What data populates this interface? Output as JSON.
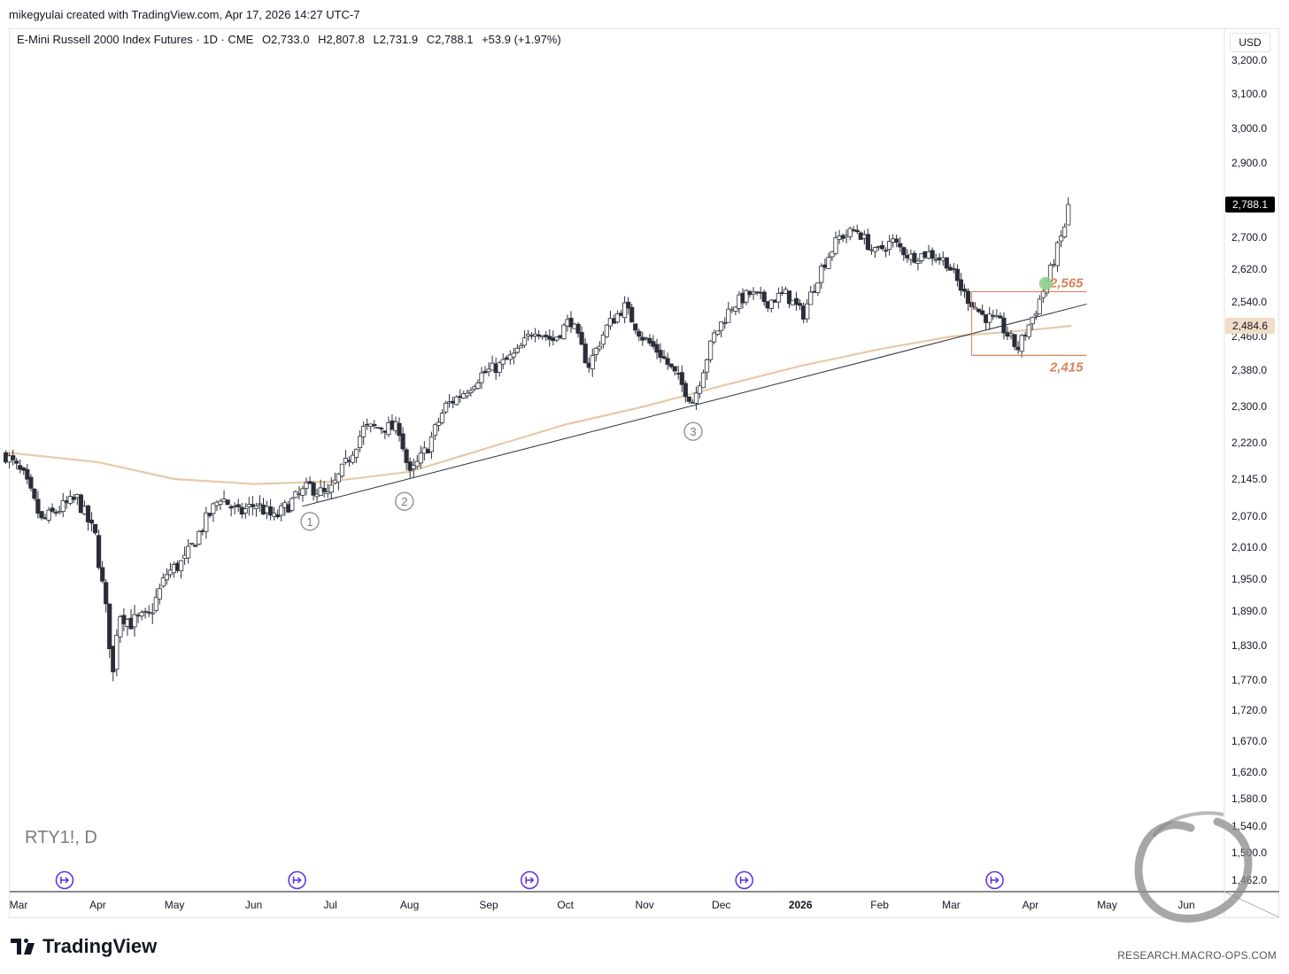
{
  "credit": "mikegyulai created with TradingView.com, Apr 17, 2026 14:27 UTC-7",
  "legend": {
    "title": "E-Mini Russell 2000 Index Futures · 1D · CME",
    "open": "O2,733.0",
    "high": "H2,807.8",
    "low": "L2,731.9",
    "close": "C2,788.1",
    "change": "+53.9 (+1.97%)"
  },
  "symbol_watermark": "RTY1!, D",
  "currency": "USD",
  "branding": {
    "logo_text": "TradingView",
    "site": "RESEARCH.MACRO-OPS.COM"
  },
  "colors": {
    "up": "#ffffff",
    "down": "#2a2e39",
    "ma": "#e8c9a8",
    "levels": "#d9825b",
    "signal": "#8fd18f",
    "event": "#5b2ee6"
  },
  "chart_data": {
    "type": "candlestick",
    "price_label": "2,788.1",
    "ma_label": "2,484.6",
    "y_axis_ticks": [
      "3,200.0",
      "3,100.0",
      "3,000.0",
      "2,900.0",
      "2,700.0",
      "2,620.0",
      "2,540.0",
      "2,460.0",
      "2,380.0",
      "2,300.0",
      "2,220.0",
      "2,145.0",
      "2,070.0",
      "2,010.0",
      "1,950.0",
      "1,890.0",
      "1,830.0",
      "1,770.0",
      "1,720.0",
      "1,670.0",
      "1,620.0",
      "1,580.0",
      "1,540.0",
      "1,500.0",
      "1,462.0"
    ],
    "x_axis_ticks": [
      "Mar",
      "Apr",
      "May",
      "Jun",
      "Jul",
      "Aug",
      "Sep",
      "Oct",
      "Nov",
      "Dec",
      "2026",
      "Feb",
      "Mar",
      "Apr",
      "May",
      "Jun"
    ],
    "annotations": {
      "levels": [
        "2,565",
        "2,415"
      ],
      "touch_labels": [
        "1",
        "2",
        "3"
      ]
    },
    "ohlc_anchors": [
      [
        "2025-02-24",
        2195
      ],
      [
        "2025-03-03",
        2150
      ],
      [
        "2025-03-10",
        2060
      ],
      [
        "2025-03-17",
        2085
      ],
      [
        "2025-03-24",
        2105
      ],
      [
        "2025-03-31",
        2030
      ],
      [
        "2025-04-04",
        1900
      ],
      [
        "2025-04-07",
        1780
      ],
      [
        "2025-04-09",
        1890
      ],
      [
        "2025-04-14",
        1870
      ],
      [
        "2025-04-21",
        1880
      ],
      [
        "2025-04-28",
        1960
      ],
      [
        "2025-05-05",
        1985
      ],
      [
        "2025-05-12",
        2050
      ],
      [
        "2025-05-19",
        2110
      ],
      [
        "2025-05-26",
        2075
      ],
      [
        "2025-06-02",
        2095
      ],
      [
        "2025-06-09",
        2065
      ],
      [
        "2025-06-16",
        2100
      ],
      [
        "2025-06-23",
        2130
      ],
      [
        "2025-06-30",
        2110
      ],
      [
        "2025-07-07",
        2175
      ],
      [
        "2025-07-14",
        2250
      ],
      [
        "2025-07-21",
        2255
      ],
      [
        "2025-07-28",
        2250
      ],
      [
        "2025-08-01",
        2150
      ],
      [
        "2025-08-08",
        2210
      ],
      [
        "2025-08-15",
        2300
      ],
      [
        "2025-08-22",
        2330
      ],
      [
        "2025-08-29",
        2370
      ],
      [
        "2025-09-05",
        2390
      ],
      [
        "2025-09-12",
        2420
      ],
      [
        "2025-09-19",
        2480
      ],
      [
        "2025-09-26",
        2450
      ],
      [
        "2025-10-03",
        2500
      ],
      [
        "2025-10-10",
        2390
      ],
      [
        "2025-10-17",
        2480
      ],
      [
        "2025-10-24",
        2530
      ],
      [
        "2025-10-31",
        2460
      ],
      [
        "2025-11-07",
        2420
      ],
      [
        "2025-11-14",
        2360
      ],
      [
        "2025-11-20",
        2310
      ],
      [
        "2025-11-28",
        2460
      ],
      [
        "2025-12-05",
        2530
      ],
      [
        "2025-12-12",
        2560
      ],
      [
        "2025-12-19",
        2540
      ],
      [
        "2025-12-26",
        2560
      ],
      [
        "2026-01-02",
        2510
      ],
      [
        "2026-01-09",
        2620
      ],
      [
        "2026-01-16",
        2700
      ],
      [
        "2026-01-23",
        2720
      ],
      [
        "2026-01-30",
        2660
      ],
      [
        "2026-02-06",
        2690
      ],
      [
        "2026-02-13",
        2650
      ],
      [
        "2026-02-20",
        2660
      ],
      [
        "2026-02-27",
        2640
      ],
      [
        "2026-03-06",
        2560
      ],
      [
        "2026-03-13",
        2510
      ],
      [
        "2026-03-20",
        2490
      ],
      [
        "2026-03-27",
        2430
      ],
      [
        "2026-04-03",
        2520
      ],
      [
        "2026-04-08",
        2600
      ],
      [
        "2026-04-13",
        2700
      ],
      [
        "2026-04-17",
        2788.1
      ]
    ],
    "ma200_anchors": [
      [
        "2025-02-24",
        2200
      ],
      [
        "2025-04-01",
        2180
      ],
      [
        "2025-05-01",
        2145
      ],
      [
        "2025-06-01",
        2135
      ],
      [
        "2025-07-01",
        2140
      ],
      [
        "2025-08-01",
        2160
      ],
      [
        "2025-09-01",
        2210
      ],
      [
        "2025-10-01",
        2260
      ],
      [
        "2025-11-01",
        2300
      ],
      [
        "2025-12-01",
        2345
      ],
      [
        "2026-01-01",
        2390
      ],
      [
        "2026-02-01",
        2430
      ],
      [
        "2026-03-01",
        2460
      ],
      [
        "2026-04-01",
        2475
      ],
      [
        "2026-04-17",
        2484.6
      ]
    ],
    "trendline": {
      "from": [
        "2025-06-20",
        2090
      ],
      "to": [
        "2026-04-23",
        2535
      ]
    },
    "range_box": {
      "start": "2026-03-09",
      "end": "2026-04-23",
      "top": 2565,
      "bottom": 2415
    },
    "signal_point": [
      "2026-04-07",
      2585
    ],
    "touch_points": [
      [
        "2025-06-23",
        2060
      ],
      [
        "2025-07-30",
        2100
      ],
      [
        "2025-11-20",
        2245
      ]
    ],
    "event_dates": [
      "2025-03-19",
      "2025-06-18",
      "2025-09-17",
      "2025-12-10",
      "2026-03-18"
    ]
  }
}
